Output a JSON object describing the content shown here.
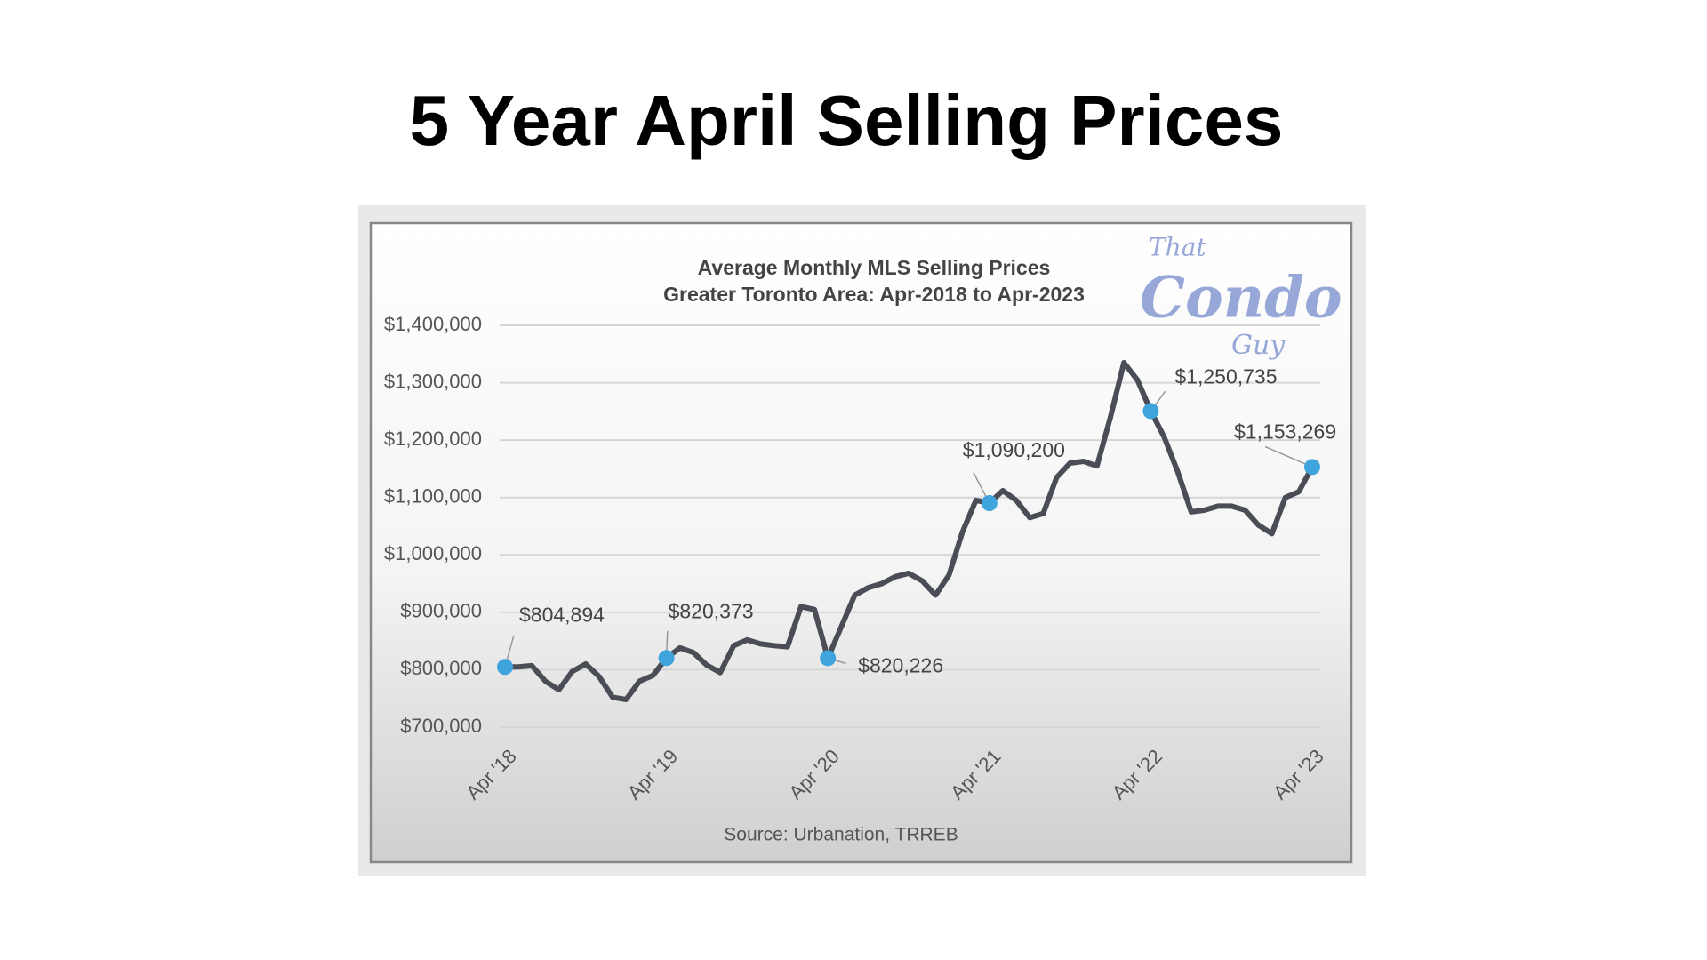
{
  "slide_title": "5 Year April Selling Prices",
  "logo": [
    "That",
    "Condo",
    "Guy"
  ],
  "chart_data": {
    "type": "line",
    "title": "Average Monthly MLS Selling Prices",
    "subtitle": "Greater Toronto Area: Apr-2018 to Apr-2023",
    "source": "Source: Urbanation, TRREB",
    "categories": [
      "Apr '18",
      null,
      null,
      null,
      null,
      null,
      null,
      null,
      null,
      null,
      null,
      null,
      "Apr '19",
      null,
      null,
      null,
      null,
      null,
      null,
      null,
      null,
      null,
      null,
      null,
      "Apr '20",
      null,
      null,
      null,
      null,
      null,
      null,
      null,
      null,
      null,
      null,
      null,
      "Apr '21",
      null,
      null,
      null,
      null,
      null,
      null,
      null,
      null,
      null,
      null,
      null,
      "Apr '22",
      null,
      null,
      null,
      null,
      null,
      null,
      null,
      null,
      null,
      null,
      null,
      "Apr '23"
    ],
    "values": [
      804894,
      805000,
      807000,
      780000,
      765000,
      797000,
      810000,
      788000,
      752000,
      748000,
      780000,
      790000,
      820373,
      838000,
      830000,
      808000,
      795000,
      842000,
      852000,
      845000,
      842000,
      840000,
      910000,
      905000,
      820226,
      875000,
      930000,
      943000,
      950000,
      962000,
      968000,
      955000,
      930000,
      965000,
      1040000,
      1095000,
      1090200,
      1112000,
      1095000,
      1065000,
      1072000,
      1135000,
      1160000,
      1163000,
      1155000,
      1240000,
      1335000,
      1305000,
      1250735,
      1205000,
      1145000,
      1075000,
      1078000,
      1085000,
      1085000,
      1078000,
      1052000,
      1037000,
      1100000,
      1110000,
      1153269
    ],
    "value_labels": [
      "$804,894",
      null,
      null,
      null,
      null,
      null,
      null,
      null,
      null,
      null,
      null,
      null,
      "$820,373",
      null,
      null,
      null,
      null,
      null,
      null,
      null,
      null,
      null,
      null,
      null,
      "$820,226",
      null,
      null,
      null,
      null,
      null,
      null,
      null,
      null,
      null,
      null,
      null,
      "$1,090,200",
      null,
      null,
      null,
      null,
      null,
      null,
      null,
      null,
      null,
      null,
      null,
      "$1,250,735",
      null,
      null,
      null,
      null,
      null,
      null,
      null,
      null,
      null,
      null,
      null,
      "$1,153,269"
    ],
    "color": "#4a4d56",
    "marker_color": "#3fa3dc",
    "ylim": [
      700000,
      1400000
    ],
    "yticks": [
      {
        "value": 700000,
        "label": "$700,000"
      },
      {
        "value": 800000,
        "label": "$800,000"
      },
      {
        "value": 900000,
        "label": "$900,000"
      },
      {
        "value": 1000000,
        "label": "$1,000,000"
      },
      {
        "value": 1100000,
        "label": "$1,100,000"
      },
      {
        "value": 1200000,
        "label": "$1,200,000"
      },
      {
        "value": 1300000,
        "label": "$1,300,000"
      },
      {
        "value": 1400000,
        "label": "$1,400,000"
      }
    ],
    "grid": true
  }
}
